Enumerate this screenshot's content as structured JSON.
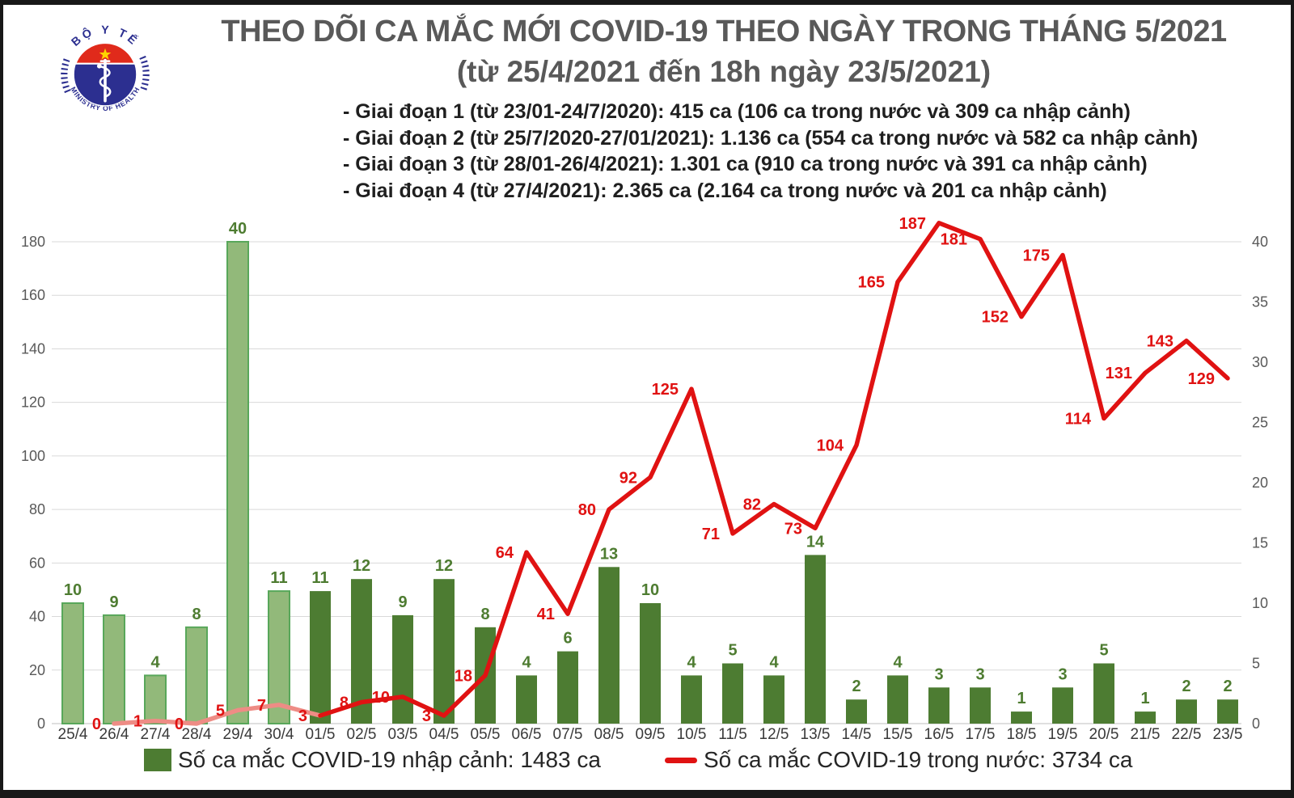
{
  "header": {
    "title_line1": "THEO DÕI CA MẮC MỚI COVID-19 THEO NGÀY TRONG THÁNG 5/2021",
    "title_line2": "(từ 25/4/2021 đến 18h ngày 23/5/2021)",
    "bullets": [
      "- Giai đoạn 1 (từ 23/01-24/7/2020): 415 ca (106 ca trong nước và 309 ca nhập cảnh)",
      "- Giai đoạn 2 (từ 25/7/2020-27/01/2021): 1.136 ca (554 ca trong nước và 582 ca nhập cảnh)",
      "- Giai đoạn 3 (từ 28/01-26/4/2021): 1.301 ca (910 ca trong nước và 391 ca nhập cảnh)",
      "- Giai đoạn 4 (từ 27/4/2021): 2.365 ca (2.164 ca trong nước và 201 ca nhập cảnh)"
    ],
    "logo": {
      "top_text": "BỘ Y TẾ",
      "bottom_text": "MINISTRY OF HEALTH"
    }
  },
  "chart_data": {
    "type": "bar+line combo",
    "categories": [
      "25/4",
      "26/4",
      "27/4",
      "28/4",
      "29/4",
      "30/4",
      "01/5",
      "02/5",
      "03/5",
      "04/5",
      "05/5",
      "06/5",
      "07/5",
      "08/5",
      "09/5",
      "10/5",
      "11/5",
      "12/5",
      "13/5",
      "14/5",
      "15/5",
      "16/5",
      "17/5",
      "18/5",
      "19/5",
      "20/5",
      "21/5",
      "22/5",
      "23/5"
    ],
    "series": [
      {
        "name": "Số ca mắc COVID-19 nhập cảnh",
        "type": "bar",
        "axis": "right",
        "values": [
          10,
          9,
          4,
          8,
          40,
          11,
          11,
          12,
          9,
          12,
          8,
          4,
          6,
          13,
          10,
          4,
          5,
          4,
          14,
          2,
          4,
          3,
          3,
          1,
          3,
          5,
          1,
          2,
          2
        ]
      },
      {
        "name": "Số ca mắc COVID-19 trong nước",
        "type": "line",
        "axis": "left",
        "values": [
          null,
          0,
          1,
          0,
          5,
          7,
          3,
          8,
          10,
          3,
          18,
          64,
          41,
          80,
          92,
          125,
          71,
          82,
          73,
          104,
          165,
          187,
          181,
          152,
          175,
          114,
          131,
          143,
          129
        ]
      }
    ],
    "left_axis": {
      "min": 0,
      "max": 180,
      "step": 20
    },
    "right_axis": {
      "min": 0,
      "max": 40,
      "step": 5
    },
    "phase_split_index": 6,
    "grid": true,
    "legend_position": "bottom"
  },
  "legend": {
    "items": [
      {
        "label": "Số ca mắc COVID-19 nhập cảnh: 1483 ca",
        "type": "bar",
        "color": "#4d7c32"
      },
      {
        "label": "Số ca mắc COVID-19 trong nước: 3734 ca",
        "type": "line",
        "color": "#e01212"
      }
    ]
  },
  "colors": {
    "bar_april_fill": "#92b97a",
    "bar_april_border": "#58a75a",
    "bar_may_fill": "#4d7c32",
    "bar_label": "#4e7c31",
    "line_april": "#ee8c85",
    "line_may": "#e01212",
    "line_label": "#e01212",
    "grid": "#d9d9d9",
    "baseline": "#bfbfbf",
    "axis_text": "#595959",
    "x_text": "#3a3a3a",
    "title_text": "#595959",
    "logo_blue": "#2c2f90",
    "logo_red": "#e02a1b",
    "logo_star": "#ffd400"
  }
}
